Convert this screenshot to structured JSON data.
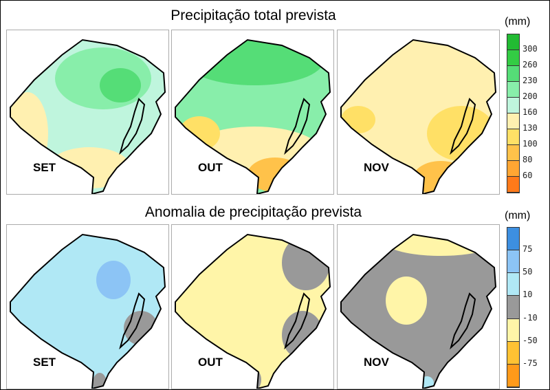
{
  "titles": {
    "top": "Precipitação total prevista",
    "bottom": "Anomalia de precipitação prevista"
  },
  "months": [
    "SET",
    "OUT",
    "NOV"
  ],
  "legend_top": {
    "unit": "(mm)",
    "ticks": [
      "300",
      "260",
      "230",
      "200",
      "160",
      "130",
      "100",
      "80",
      "60"
    ],
    "colors": [
      "#22bb33",
      "#33cc44",
      "#55dd77",
      "#88eeaa",
      "#bff5dd",
      "#fff0b0",
      "#ffe066",
      "#ffc24a",
      "#ffa633",
      "#ff7a1a"
    ]
  },
  "legend_bottom": {
    "unit": "(mm)",
    "ticks": [
      "75",
      "50",
      "10",
      "-10",
      "-50",
      "-75"
    ],
    "colors": [
      "#3d8fe0",
      "#8cc4f5",
      "#b0e8f5",
      "#999999",
      "#fff5a8",
      "#ffc233",
      "#ff9a1a"
    ]
  },
  "maps": {
    "top": [
      {
        "base": "#bff5dd",
        "blobs": [
          [
            "#88eeaa",
            140,
            70,
            70,
            45
          ],
          [
            "#55dd77",
            165,
            80,
            30,
            25
          ],
          [
            "#fff0b0",
            30,
            150,
            30,
            60
          ],
          [
            "#fff0b0",
            120,
            200,
            60,
            30
          ]
        ]
      },
      {
        "base": "#88eeaa",
        "blobs": [
          [
            "#55dd77",
            120,
            45,
            100,
            35
          ],
          [
            "#fff0b0",
            120,
            180,
            100,
            40
          ],
          [
            "#ffe066",
            40,
            150,
            30,
            25
          ],
          [
            "#ffc24a",
            150,
            210,
            40,
            25
          ]
        ]
      },
      {
        "base": "#fff0b0",
        "blobs": [
          [
            "#ffe066",
            180,
            150,
            50,
            40
          ],
          [
            "#ffc24a",
            150,
            215,
            40,
            25
          ],
          [
            "#ffe066",
            30,
            130,
            25,
            20
          ]
        ]
      }
    ],
    "bottom": [
      {
        "base": "#b0e8f5",
        "blobs": [
          [
            "#8cc4f5",
            155,
            80,
            25,
            28
          ],
          [
            "#999999",
            195,
            150,
            25,
            25
          ],
          [
            "#999999",
            135,
            230,
            10,
            15
          ]
        ]
      },
      {
        "base": "#fff5a8",
        "blobs": [
          [
            "#999999",
            195,
            55,
            35,
            40
          ],
          [
            "#999999",
            190,
            160,
            30,
            35
          ],
          [
            "#999999",
            120,
            225,
            10,
            15
          ]
        ]
      },
      {
        "base": "#999999",
        "blobs": [
          [
            "#fff5a8",
            150,
            25,
            80,
            20
          ],
          [
            "#fff5a8",
            100,
            110,
            30,
            35
          ],
          [
            "#b0e8f5",
            130,
            230,
            10,
            10
          ]
        ]
      }
    ]
  }
}
